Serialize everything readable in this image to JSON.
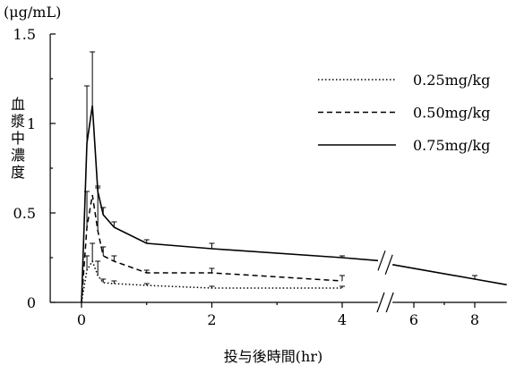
{
  "chart_data": {
    "type": "line",
    "xlabel": "投与後時間(hr)",
    "ylabel": "血漿中濃度",
    "yunit": "(μg/mL)",
    "xlim": [
      -0.48,
      9.05
    ],
    "ylim": [
      0,
      1.5
    ],
    "x_break": [
      4.55,
      5.3
    ],
    "xticks": [
      0,
      2,
      4,
      6,
      8
    ],
    "xtick_labels": [
      "0",
      "2",
      "4",
      "6",
      "8"
    ],
    "yticks": [
      0,
      0.5,
      1,
      1.5
    ],
    "ytick_labels": [
      "0",
      "0.5",
      "1",
      "1.5"
    ],
    "grid": false,
    "legend": "top-right",
    "series": [
      {
        "name": "0.25mg/kg",
        "x": [
          0,
          0.083,
          0.167,
          0.25,
          0.333,
          0.5,
          1,
          2,
          4
        ],
        "y": [
          0,
          0.18,
          0.23,
          0.15,
          0.11,
          0.105,
          0.095,
          0.08,
          0.08
        ],
        "y_upper": [
          null,
          0.26,
          0.33,
          0.23,
          0.13,
          0.12,
          0.105,
          0.09,
          0.09
        ]
      },
      {
        "name": "0.50mg/kg",
        "x": [
          0,
          0.083,
          0.167,
          0.25,
          0.333,
          0.5,
          1,
          2,
          4
        ],
        "y": [
          0,
          0.42,
          0.6,
          0.4,
          0.26,
          0.23,
          0.165,
          0.165,
          0.12
        ],
        "y_upper": [
          null,
          0.62,
          null,
          0.64,
          0.31,
          0.26,
          0.18,
          0.19,
          0.15
        ]
      },
      {
        "name": "0.75mg/kg",
        "x": [
          0,
          0.083,
          0.167,
          0.25,
          0.333,
          0.5,
          1,
          2,
          4,
          8
        ],
        "y": [
          0,
          0.89,
          1.1,
          0.62,
          0.49,
          0.42,
          0.33,
          0.3,
          0.25,
          0.13
        ],
        "y_upper": [
          null,
          1.21,
          1.4,
          0.65,
          0.53,
          0.45,
          0.35,
          0.33,
          0.26,
          0.15
        ]
      }
    ]
  }
}
